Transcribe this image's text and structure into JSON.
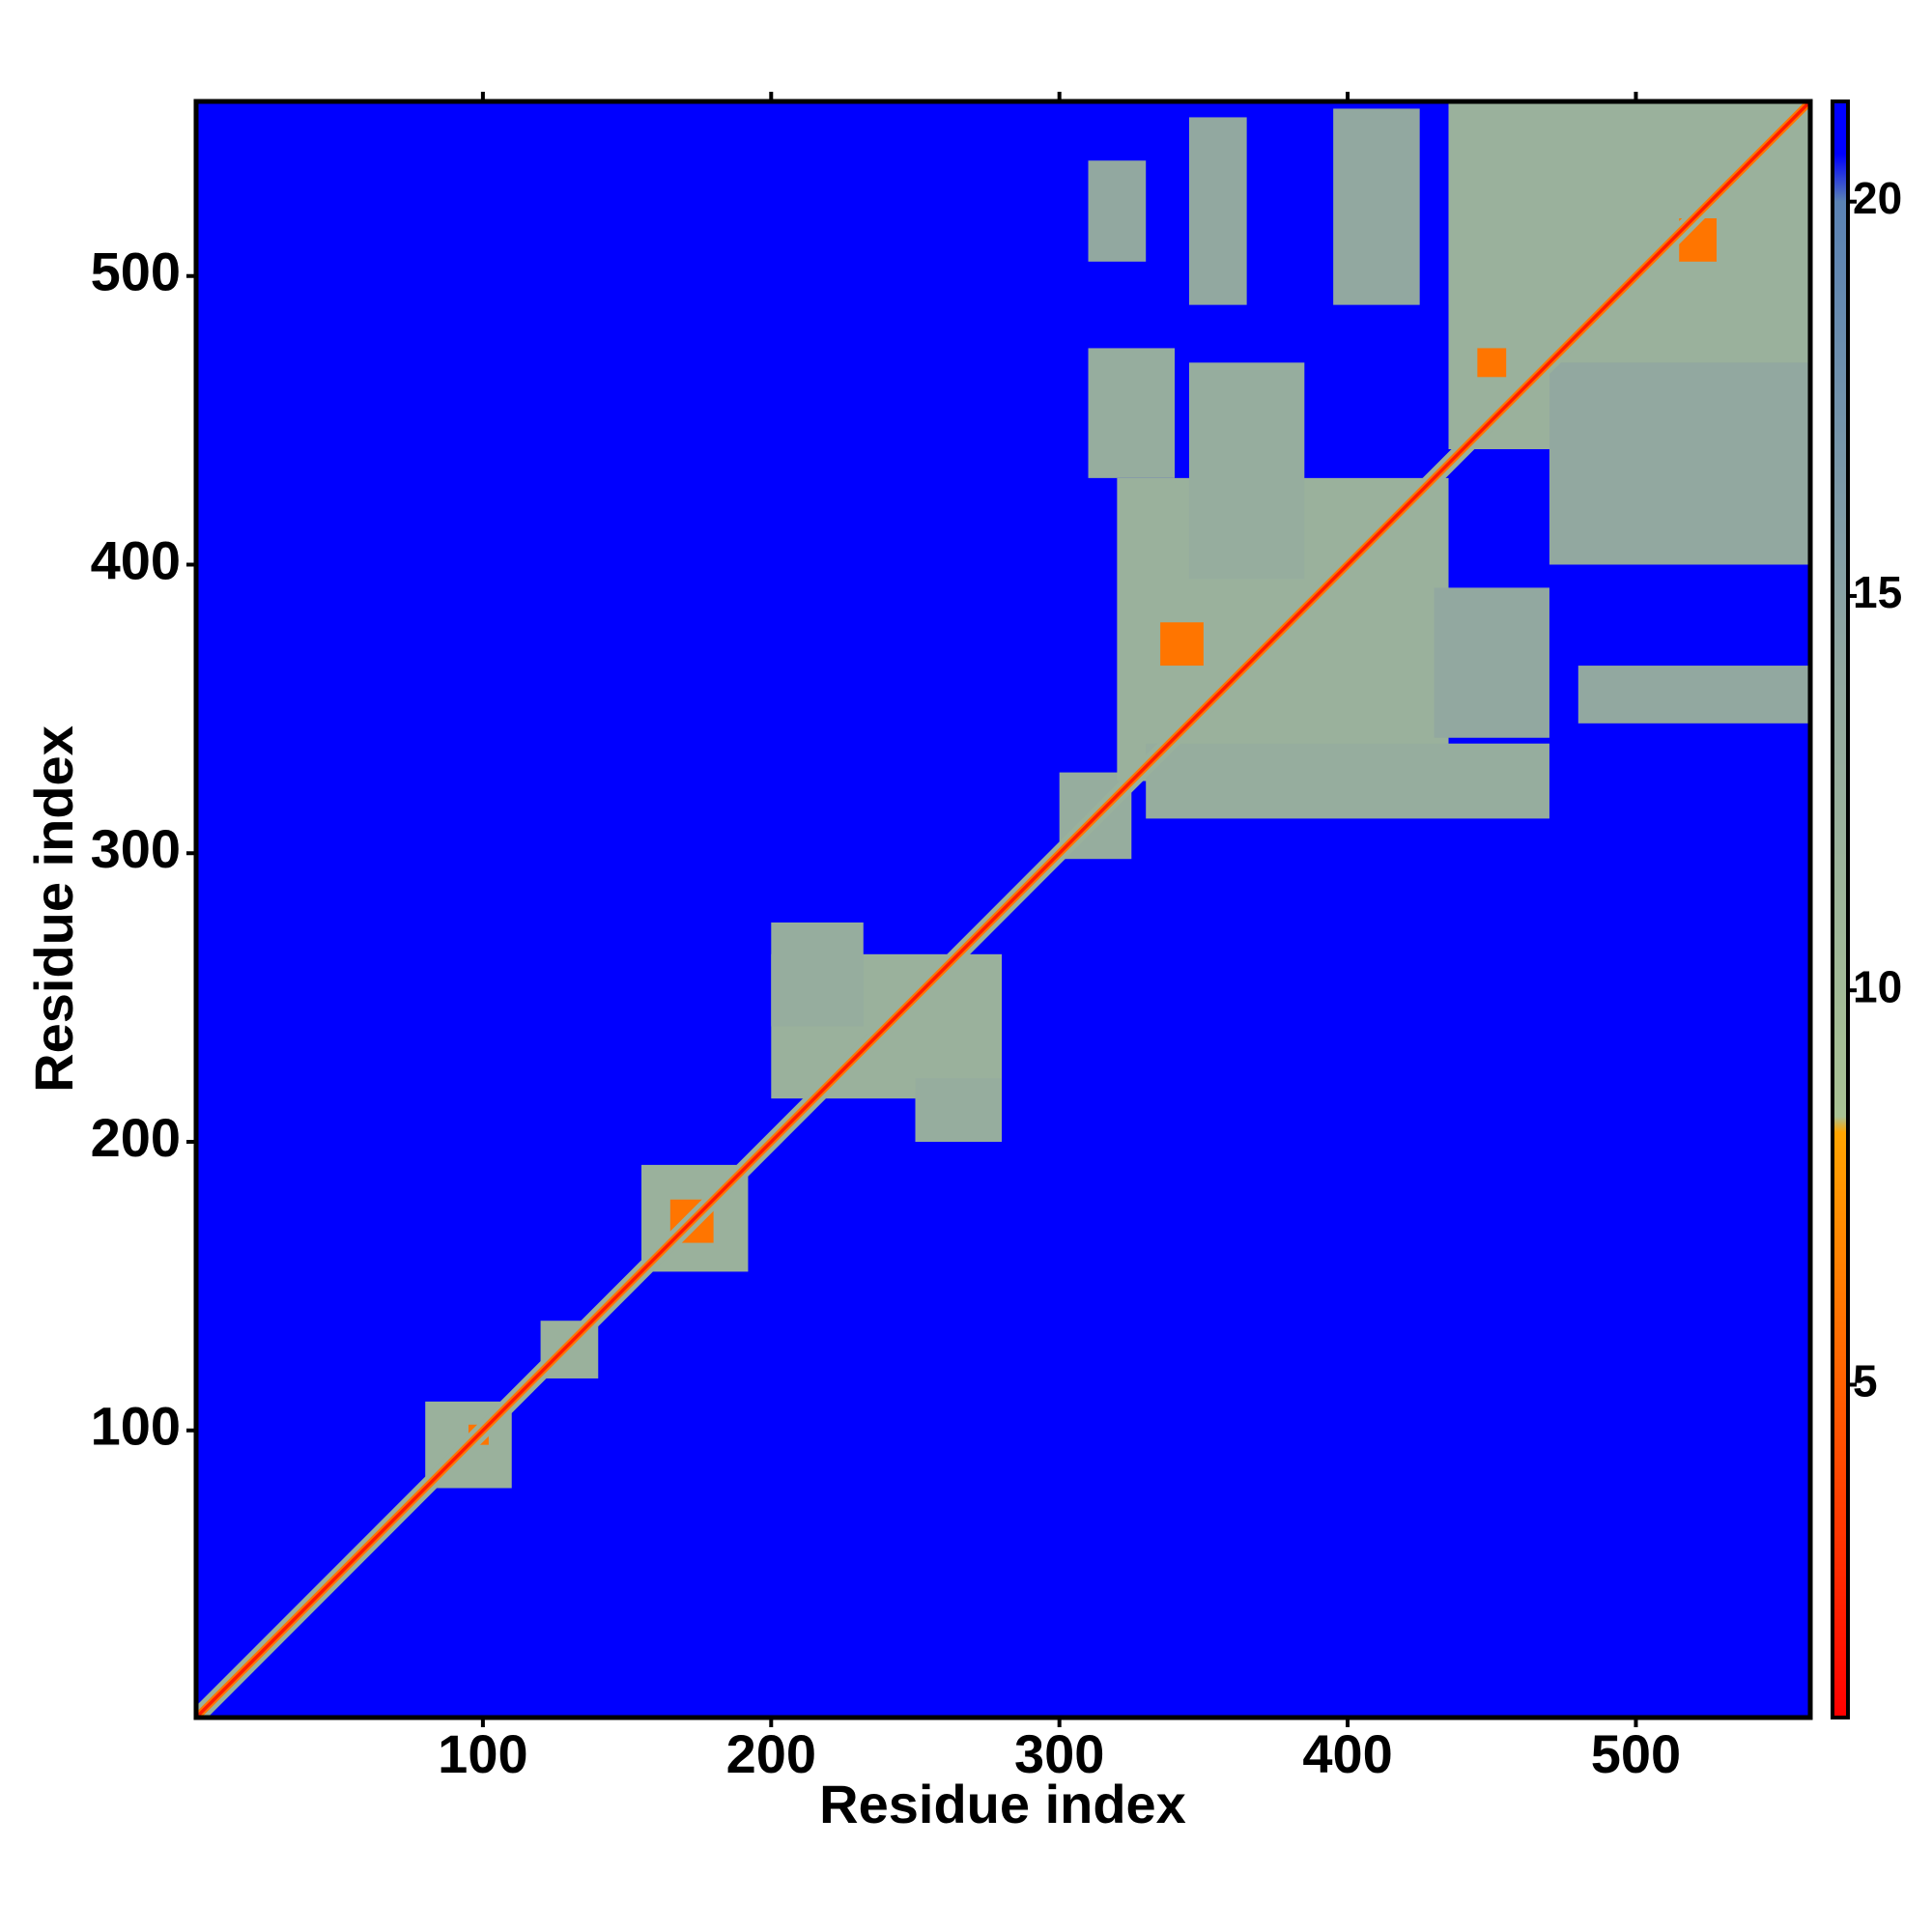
{
  "chart_data": {
    "type": "heatmap",
    "xlabel": "Residue index",
    "ylabel": "Residue index",
    "xlim": [
      0.5,
      560.5
    ],
    "ylim": [
      0.5,
      560.5
    ],
    "xticks": [
      100,
      200,
      300,
      400,
      500
    ],
    "yticks": [
      100,
      200,
      300,
      400,
      500
    ],
    "zlim": [
      0.78,
      21.27
    ],
    "zticks": [
      5,
      10,
      15,
      20
    ],
    "background_value": 21,
    "colormap": [
      {
        "value": 0.78,
        "color": "#ff0000"
      },
      {
        "value": 4,
        "color": "#ff4a00"
      },
      {
        "value": 8.2,
        "color": "#ffa500"
      },
      {
        "value": 8.4,
        "color": "#a9c294"
      },
      {
        "value": 14,
        "color": "#92a8a0"
      },
      {
        "value": 20,
        "color": "#5a82b4"
      },
      {
        "value": 20.6,
        "color": "#0000ff"
      }
    ],
    "regions": [
      {
        "x": [
          80,
          110
        ],
        "y": [
          80,
          110
        ],
        "value": 12
      },
      {
        "x": [
          120,
          140
        ],
        "y": [
          118,
          138
        ],
        "value": 12
      },
      {
        "x": [
          155,
          192
        ],
        "y": [
          155,
          192
        ],
        "value": 12
      },
      {
        "x": [
          200,
          280
        ],
        "y": [
          215,
          265
        ],
        "value": 12
      },
      {
        "x": [
          200,
          232
        ],
        "y": [
          240,
          276
        ],
        "value": 13
      },
      {
        "x": [
          250,
          280
        ],
        "y": [
          200,
          222
        ],
        "value": 13
      },
      {
        "x": [
          300,
          325
        ],
        "y": [
          298,
          328
        ],
        "value": 13
      },
      {
        "x": [
          320,
          435
        ],
        "y": [
          325,
          430
        ],
        "value": 12
      },
      {
        "x": [
          330,
          470
        ],
        "y": [
          312,
          338
        ],
        "value": 13
      },
      {
        "x": [
          430,
          470
        ],
        "y": [
          340,
          392
        ],
        "value": 14
      },
      {
        "x": [
          310,
          340
        ],
        "y": [
          430,
          475
        ],
        "value": 13
      },
      {
        "x": [
          345,
          385
        ],
        "y": [
          395,
          470
        ],
        "value": 13
      },
      {
        "x": [
          310,
          330
        ],
        "y": [
          505,
          540
        ],
        "value": 14
      },
      {
        "x": [
          345,
          365
        ],
        "y": [
          490,
          555
        ],
        "value": 14
      },
      {
        "x": [
          395,
          425
        ],
        "y": [
          490,
          558
        ],
        "value": 14
      },
      {
        "x": [
          435,
          465
        ],
        "y": [
          490,
          558
        ],
        "value": 13
      },
      {
        "x": [
          435,
          560
        ],
        "y": [
          440,
          560
        ],
        "value": 12
      },
      {
        "x": [
          470,
          560
        ],
        "y": [
          400,
          470
        ],
        "value": 14
      },
      {
        "x": [
          480,
          560
        ],
        "y": [
          345,
          365
        ],
        "value": 14
      },
      {
        "x": [
          335,
          350
        ],
        "y": [
          365,
          380
        ],
        "value": 6
      },
      {
        "x": [
          445,
          455
        ],
        "y": [
          465,
          475
        ],
        "value": 6
      },
      {
        "x": [
          515,
          528
        ],
        "y": [
          505,
          520
        ],
        "value": 6
      },
      {
        "x": [
          165,
          180
        ],
        "y": [
          165,
          180
        ],
        "value": 6
      },
      {
        "x": [
          95,
          102
        ],
        "y": [
          95,
          102
        ],
        "value": 6
      }
    ],
    "diagonal_bands": [
      {
        "half_width": 4,
        "value": 12
      },
      {
        "half_width": 1.8,
        "value": 6
      },
      {
        "half_width": 0.8,
        "value": 2
      }
    ]
  }
}
